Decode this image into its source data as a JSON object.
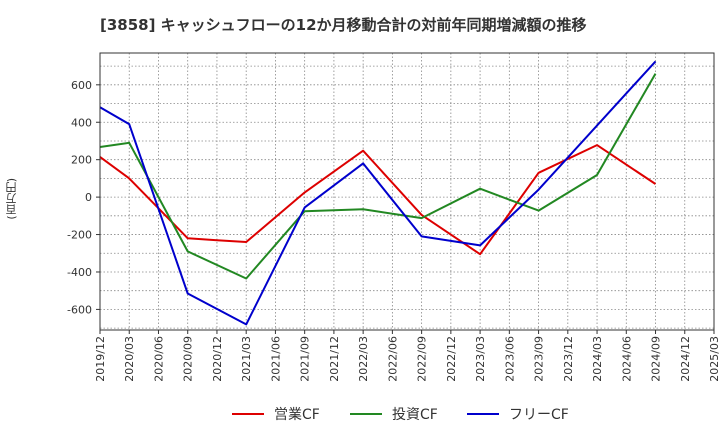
{
  "title": "[3858]  キャッシュフローの12か月移動合計の対前年同期増減額の推移",
  "y_unit": "(百万円)",
  "chart_data": {
    "type": "line",
    "title": "[3858]  キャッシュフローの12か月移動合計の対前年同期増減額の推移",
    "ylabel": "(百万円)",
    "xlabel": "",
    "x": [
      "2019/12",
      "2020/03",
      "2020/06",
      "2020/09",
      "2020/12",
      "2021/03",
      "2021/06",
      "2021/09",
      "2021/12",
      "2022/03",
      "2022/06",
      "2022/09",
      "2022/12",
      "2023/03",
      "2023/06",
      "2023/09",
      "2023/12",
      "2024/03",
      "2024/06",
      "2024/09",
      "2024/12",
      "2025/03"
    ],
    "ylim": [
      -710,
      770
    ],
    "yticks": [
      600,
      400,
      200,
      0,
      -200,
      -400,
      -600
    ],
    "ytick_labels": [
      "600",
      "400",
      "200",
      "0",
      "-200",
      "-400",
      "-600"
    ],
    "grid": true,
    "legend_position": "bottom",
    "series": [
      {
        "name": "営業CF",
        "color": "#dd0000",
        "values": [
          215,
          100,
          -60,
          -220,
          -230,
          -240,
          null,
          25,
          null,
          248,
          null,
          -95,
          null,
          -305,
          null,
          130,
          null,
          278,
          null,
          70,
          null,
          null
        ]
      },
      {
        "name": "投資CF",
        "color": "#228822",
        "values": [
          268,
          290,
          null,
          -290,
          null,
          -435,
          null,
          -75,
          null,
          -65,
          null,
          -112,
          null,
          45,
          null,
          -72,
          null,
          118,
          null,
          660,
          null,
          null
        ]
      },
      {
        "name": "フリーCF",
        "color": "#0000cc",
        "values": [
          480,
          390,
          null,
          -515,
          null,
          -680,
          null,
          -55,
          null,
          180,
          null,
          -210,
          null,
          -258,
          null,
          40,
          null,
          null,
          null,
          725,
          null,
          null
        ]
      }
    ]
  }
}
